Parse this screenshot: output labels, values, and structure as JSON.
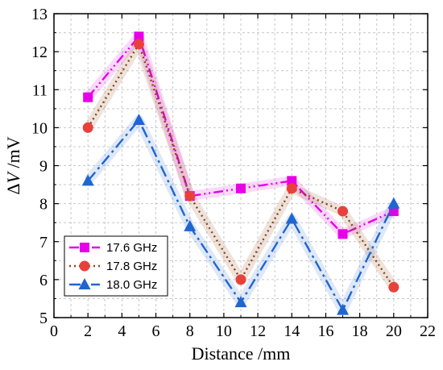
{
  "chart_data": {
    "type": "line",
    "title": "",
    "xlabel": "Distance /mm",
    "ylabel": "ΔV /mV",
    "xlim": [
      0,
      22
    ],
    "ylim": [
      5,
      13
    ],
    "x_ticks": [
      0,
      2,
      4,
      6,
      8,
      10,
      12,
      14,
      16,
      18,
      20,
      22
    ],
    "y_ticks": [
      5,
      6,
      7,
      8,
      9,
      10,
      11,
      12,
      13
    ],
    "grid": true,
    "legend_position": "bottom-left",
    "x": [
      2,
      5,
      8,
      11,
      14,
      17,
      20
    ],
    "series": [
      {
        "name": "17.6 GHz",
        "values": [
          10.8,
          12.4,
          8.2,
          8.4,
          8.6,
          7.2,
          7.8
        ],
        "color": "#e600e6",
        "marker": "square",
        "line_style": "dash-dot-dot"
      },
      {
        "name": "17.8 GHz",
        "values": [
          10.0,
          12.2,
          8.2,
          6.0,
          8.4,
          7.8,
          5.8
        ],
        "color": "#8b4513",
        "marker_color": "#e8413c",
        "marker": "circle",
        "line_style": "dotted"
      },
      {
        "name": "18.0 GHz",
        "values": [
          8.6,
          10.2,
          7.4,
          5.4,
          7.6,
          5.2,
          8.0
        ],
        "color": "#1f66d1",
        "marker": "triangle",
        "line_style": "dash-dot"
      }
    ]
  }
}
